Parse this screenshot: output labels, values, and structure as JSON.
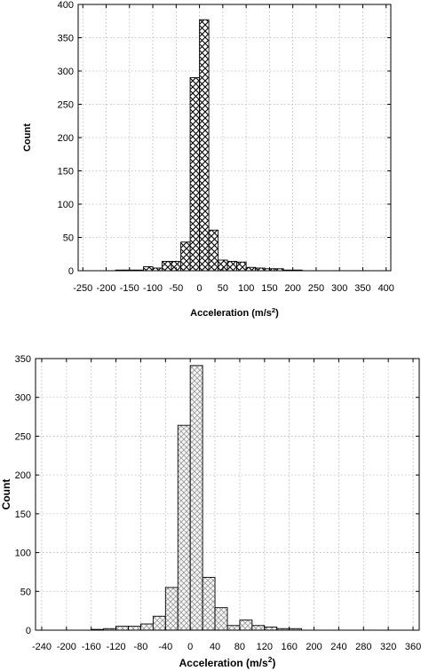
{
  "chart_data": [
    {
      "type": "bar",
      "hatch": "dense",
      "xlabel": "Acceleration (m/s",
      "xlabel_sup": "2",
      "xlabel_close": ")",
      "ylabel": "Count",
      "xlim": [
        -260,
        410
      ],
      "ylim": [
        0,
        400
      ],
      "xticks": [
        -250,
        -200,
        -150,
        -100,
        -50,
        0,
        50,
        100,
        150,
        200,
        250,
        300,
        350,
        400
      ],
      "yticks": [
        0,
        50,
        100,
        150,
        200,
        250,
        300,
        350,
        400
      ],
      "bin_width": 20,
      "grid": true,
      "bars": [
        {
          "x": -170,
          "count": 1
        },
        {
          "x": -150,
          "count": 1
        },
        {
          "x": -130,
          "count": 1
        },
        {
          "x": -110,
          "count": 6
        },
        {
          "x": -90,
          "count": 4
        },
        {
          "x": -70,
          "count": 14
        },
        {
          "x": -50,
          "count": 14
        },
        {
          "x": -30,
          "count": 43
        },
        {
          "x": -10,
          "count": 290
        },
        {
          "x": 10,
          "count": 377
        },
        {
          "x": 30,
          "count": 61
        },
        {
          "x": 50,
          "count": 16
        },
        {
          "x": 70,
          "count": 14
        },
        {
          "x": 90,
          "count": 13
        },
        {
          "x": 110,
          "count": 5
        },
        {
          "x": 130,
          "count": 4
        },
        {
          "x": 150,
          "count": 3
        },
        {
          "x": 170,
          "count": 3
        },
        {
          "x": 190,
          "count": 1
        },
        {
          "x": 210,
          "count": 1
        }
      ]
    },
    {
      "type": "bar",
      "hatch": "light",
      "xlabel": "Acceleration (m/s",
      "xlabel_sup": "2",
      "xlabel_close": ")",
      "ylabel": "Count",
      "xlim": [
        -250,
        370
      ],
      "ylim": [
        0,
        350
      ],
      "xticks": [
        -240,
        -200,
        -160,
        -120,
        -80,
        -40,
        0,
        40,
        80,
        120,
        160,
        200,
        240,
        280,
        320,
        360
      ],
      "yticks": [
        0,
        50,
        100,
        150,
        200,
        250,
        300,
        350
      ],
      "bin_width": 20,
      "grid": true,
      "bars": [
        {
          "x": -150,
          "count": 1
        },
        {
          "x": -130,
          "count": 2
        },
        {
          "x": -110,
          "count": 5
        },
        {
          "x": -90,
          "count": 5
        },
        {
          "x": -70,
          "count": 8
        },
        {
          "x": -50,
          "count": 18
        },
        {
          "x": -30,
          "count": 55
        },
        {
          "x": -10,
          "count": 264
        },
        {
          "x": 10,
          "count": 341
        },
        {
          "x": 30,
          "count": 68
        },
        {
          "x": 50,
          "count": 29
        },
        {
          "x": 70,
          "count": 6
        },
        {
          "x": 90,
          "count": 13
        },
        {
          "x": 110,
          "count": 6
        },
        {
          "x": 130,
          "count": 4
        },
        {
          "x": 150,
          "count": 2
        },
        {
          "x": 170,
          "count": 2
        }
      ]
    }
  ]
}
